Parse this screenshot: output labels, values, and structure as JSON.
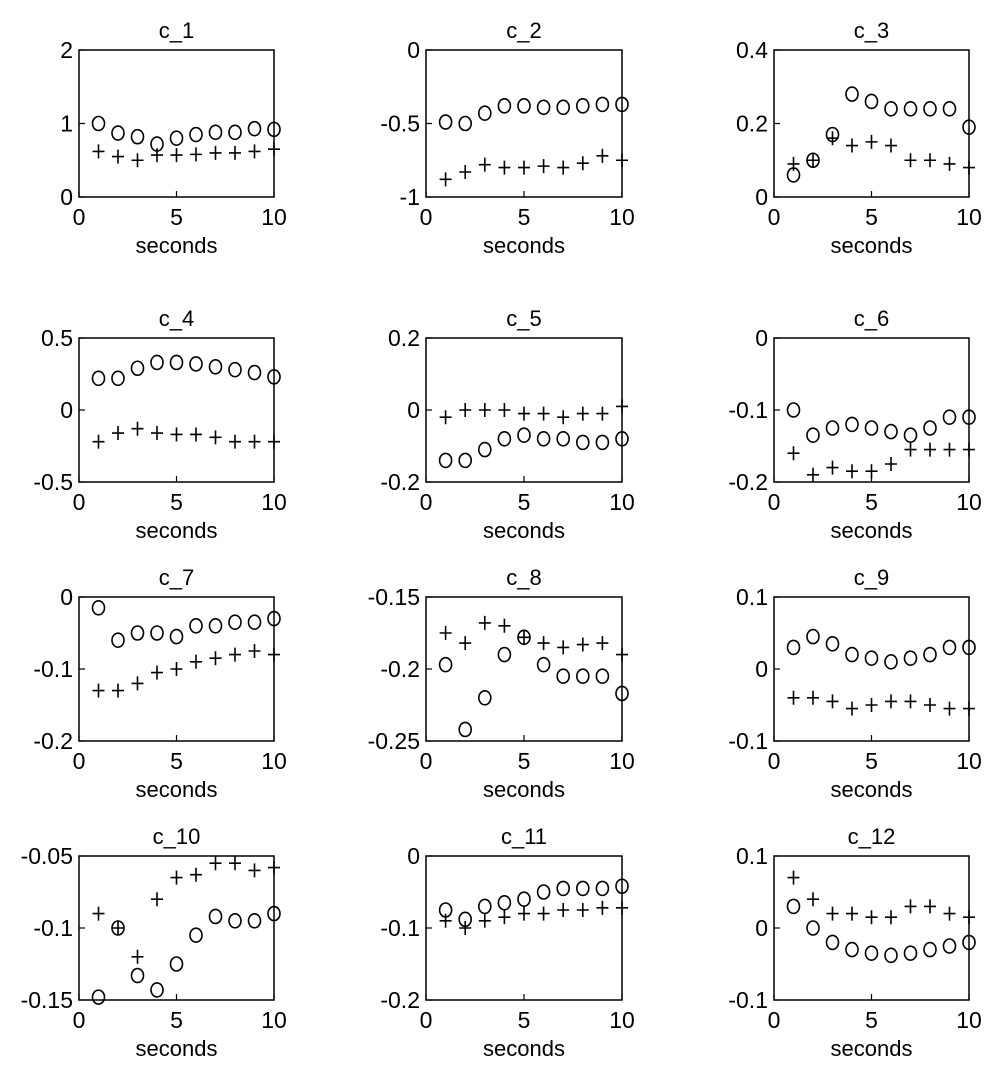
{
  "figure": {
    "background": "#ffffff",
    "marker_color": "#000000"
  },
  "chart_data": [
    {
      "type": "scatter",
      "title": "c_1",
      "xlabel": "seconds",
      "ylabel": "",
      "xlim": [
        0,
        10
      ],
      "ylim": [
        0,
        2
      ],
      "xticks": [
        "0",
        "5",
        "10"
      ],
      "yticks": [
        "0",
        "1",
        "2"
      ],
      "series": [
        {
          "marker": "o",
          "x": [
            1,
            2,
            3,
            4,
            5,
            6,
            7,
            8,
            9,
            10
          ],
          "values": [
            1.0,
            0.87,
            0.82,
            0.72,
            0.8,
            0.85,
            0.88,
            0.88,
            0.93,
            0.92
          ]
        },
        {
          "marker": "+",
          "x": [
            1,
            2,
            3,
            4,
            5,
            6,
            7,
            8,
            9,
            10
          ],
          "values": [
            0.62,
            0.55,
            0.5,
            0.57,
            0.57,
            0.58,
            0.6,
            0.6,
            0.62,
            0.65
          ]
        }
      ]
    },
    {
      "type": "scatter",
      "title": "c_2",
      "xlabel": "seconds",
      "ylabel": "",
      "xlim": [
        0,
        10
      ],
      "ylim": [
        -1,
        0
      ],
      "xticks": [
        "0",
        "5",
        "10"
      ],
      "yticks": [
        "-1",
        "-0.5",
        "0"
      ],
      "series": [
        {
          "marker": "o",
          "x": [
            1,
            2,
            3,
            4,
            5,
            6,
            7,
            8,
            9,
            10
          ],
          "values": [
            -0.49,
            -0.5,
            -0.43,
            -0.38,
            -0.38,
            -0.39,
            -0.39,
            -0.38,
            -0.37,
            -0.37
          ]
        },
        {
          "marker": "+",
          "x": [
            1,
            2,
            3,
            4,
            5,
            6,
            7,
            8,
            9,
            10
          ],
          "values": [
            -0.88,
            -0.83,
            -0.78,
            -0.8,
            -0.8,
            -0.79,
            -0.8,
            -0.77,
            -0.72,
            -0.75
          ]
        }
      ]
    },
    {
      "type": "scatter",
      "title": "c_3",
      "xlabel": "seconds",
      "ylabel": "",
      "xlim": [
        0,
        10
      ],
      "ylim": [
        0,
        0.4
      ],
      "xticks": [
        "0",
        "5",
        "10"
      ],
      "yticks": [
        "0",
        "0.2",
        "0.4"
      ],
      "series": [
        {
          "marker": "o",
          "x": [
            1,
            2,
            3,
            4,
            5,
            6,
            7,
            8,
            9,
            10
          ],
          "values": [
            0.06,
            0.1,
            0.17,
            0.28,
            0.26,
            0.24,
            0.24,
            0.24,
            0.24,
            0.19
          ]
        },
        {
          "marker": "+",
          "x": [
            1,
            2,
            3,
            4,
            5,
            6,
            7,
            8,
            9,
            10
          ],
          "values": [
            0.09,
            0.1,
            0.16,
            0.14,
            0.15,
            0.14,
            0.1,
            0.1,
            0.09,
            0.08
          ]
        }
      ]
    },
    {
      "type": "scatter",
      "title": "c_4",
      "xlabel": "seconds",
      "ylabel": "",
      "xlim": [
        0,
        10
      ],
      "ylim": [
        -0.5,
        0.5
      ],
      "xticks": [
        "0",
        "5",
        "10"
      ],
      "yticks": [
        "-0.5",
        "0",
        "0.5"
      ],
      "series": [
        {
          "marker": "o",
          "x": [
            1,
            2,
            3,
            4,
            5,
            6,
            7,
            8,
            9,
            10
          ],
          "values": [
            0.22,
            0.22,
            0.29,
            0.33,
            0.33,
            0.32,
            0.3,
            0.28,
            0.26,
            0.23
          ]
        },
        {
          "marker": "+",
          "x": [
            1,
            2,
            3,
            4,
            5,
            6,
            7,
            8,
            9,
            10
          ],
          "values": [
            -0.22,
            -0.16,
            -0.13,
            -0.16,
            -0.17,
            -0.17,
            -0.19,
            -0.22,
            -0.22,
            -0.22
          ]
        }
      ]
    },
    {
      "type": "scatter",
      "title": "c_5",
      "xlabel": "seconds",
      "ylabel": "",
      "xlim": [
        0,
        10
      ],
      "ylim": [
        -0.2,
        0.2
      ],
      "xticks": [
        "0",
        "5",
        "10"
      ],
      "yticks": [
        "-0.2",
        "0",
        "0.2"
      ],
      "series": [
        {
          "marker": "o",
          "x": [
            1,
            2,
            3,
            4,
            5,
            6,
            7,
            8,
            9,
            10
          ],
          "values": [
            -0.14,
            -0.14,
            -0.11,
            -0.08,
            -0.07,
            -0.08,
            -0.08,
            -0.09,
            -0.09,
            -0.08
          ]
        },
        {
          "marker": "+",
          "x": [
            1,
            2,
            3,
            4,
            5,
            6,
            7,
            8,
            9,
            10
          ],
          "values": [
            -0.02,
            0.0,
            0.0,
            0.0,
            -0.01,
            -0.01,
            -0.02,
            -0.01,
            -0.01,
            0.01
          ]
        }
      ]
    },
    {
      "type": "scatter",
      "title": "c_6",
      "xlabel": "seconds",
      "ylabel": "",
      "xlim": [
        0,
        10
      ],
      "ylim": [
        -0.2,
        0
      ],
      "xticks": [
        "0",
        "5",
        "10"
      ],
      "yticks": [
        "-0.2",
        "-0.1",
        "0"
      ],
      "series": [
        {
          "marker": "o",
          "x": [
            1,
            2,
            3,
            4,
            5,
            6,
            7,
            8,
            9,
            10
          ],
          "values": [
            -0.1,
            -0.135,
            -0.125,
            -0.12,
            -0.125,
            -0.13,
            -0.135,
            -0.125,
            -0.11,
            -0.11
          ]
        },
        {
          "marker": "+",
          "x": [
            1,
            2,
            3,
            4,
            5,
            6,
            7,
            8,
            9,
            10
          ],
          "values": [
            -0.16,
            -0.19,
            -0.18,
            -0.185,
            -0.185,
            -0.175,
            -0.155,
            -0.155,
            -0.155,
            -0.155
          ]
        }
      ]
    },
    {
      "type": "scatter",
      "title": "c_7",
      "xlabel": "seconds",
      "ylabel": "",
      "xlim": [
        0,
        10
      ],
      "ylim": [
        -0.2,
        0
      ],
      "xticks": [
        "0",
        "5",
        "10"
      ],
      "yticks": [
        "-0.2",
        "-0.1",
        "0"
      ],
      "series": [
        {
          "marker": "o",
          "x": [
            1,
            2,
            3,
            4,
            5,
            6,
            7,
            8,
            9,
            10
          ],
          "values": [
            -0.015,
            -0.06,
            -0.05,
            -0.05,
            -0.055,
            -0.04,
            -0.04,
            -0.035,
            -0.035,
            -0.03
          ]
        },
        {
          "marker": "+",
          "x": [
            1,
            2,
            3,
            4,
            5,
            6,
            7,
            8,
            9,
            10
          ],
          "values": [
            -0.13,
            -0.13,
            -0.12,
            -0.105,
            -0.1,
            -0.09,
            -0.085,
            -0.08,
            -0.075,
            -0.08
          ]
        }
      ]
    },
    {
      "type": "scatter",
      "title": "c_8",
      "xlabel": "seconds",
      "ylabel": "",
      "xlim": [
        0,
        10
      ],
      "ylim": [
        -0.25,
        -0.15
      ],
      "xticks": [
        "0",
        "5",
        "10"
      ],
      "yticks": [
        "-0.25",
        "-0.2",
        "-0.15"
      ],
      "series": [
        {
          "marker": "o",
          "x": [
            1,
            2,
            3,
            4,
            5,
            6,
            7,
            8,
            9,
            10
          ],
          "values": [
            -0.197,
            -0.242,
            -0.22,
            -0.19,
            -0.178,
            -0.197,
            -0.205,
            -0.205,
            -0.205,
            -0.217
          ]
        },
        {
          "marker": "+",
          "x": [
            1,
            2,
            3,
            4,
            5,
            6,
            7,
            8,
            9,
            10
          ],
          "values": [
            -0.175,
            -0.182,
            -0.168,
            -0.17,
            -0.178,
            -0.182,
            -0.185,
            -0.183,
            -0.182,
            -0.19
          ]
        }
      ]
    },
    {
      "type": "scatter",
      "title": "c_9",
      "xlabel": "seconds",
      "ylabel": "",
      "xlim": [
        0,
        10
      ],
      "ylim": [
        -0.1,
        0.1
      ],
      "xticks": [
        "0",
        "5",
        "10"
      ],
      "yticks": [
        "-0.1",
        "0",
        "0.1"
      ],
      "series": [
        {
          "marker": "o",
          "x": [
            1,
            2,
            3,
            4,
            5,
            6,
            7,
            8,
            9,
            10
          ],
          "values": [
            0.03,
            0.045,
            0.035,
            0.02,
            0.015,
            0.01,
            0.015,
            0.02,
            0.03,
            0.03
          ]
        },
        {
          "marker": "+",
          "x": [
            1,
            2,
            3,
            4,
            5,
            6,
            7,
            8,
            9,
            10
          ],
          "values": [
            -0.04,
            -0.04,
            -0.045,
            -0.055,
            -0.05,
            -0.045,
            -0.045,
            -0.05,
            -0.055,
            -0.055
          ]
        }
      ]
    },
    {
      "type": "scatter",
      "title": "c_10",
      "xlabel": "seconds",
      "ylabel": "",
      "xlim": [
        0,
        10
      ],
      "ylim": [
        -0.15,
        -0.05
      ],
      "xticks": [
        "0",
        "5",
        "10"
      ],
      "yticks": [
        "-0.15",
        "-0.1",
        "-0.05"
      ],
      "series": [
        {
          "marker": "o",
          "x": [
            1,
            2,
            3,
            4,
            5,
            6,
            7,
            8,
            9,
            10
          ],
          "values": [
            -0.148,
            -0.1,
            -0.133,
            -0.143,
            -0.125,
            -0.105,
            -0.092,
            -0.095,
            -0.095,
            -0.09
          ]
        },
        {
          "marker": "+",
          "x": [
            1,
            2,
            3,
            4,
            5,
            6,
            7,
            8,
            9,
            10
          ],
          "values": [
            -0.09,
            -0.1,
            -0.12,
            -0.08,
            -0.065,
            -0.063,
            -0.055,
            -0.055,
            -0.06,
            -0.058
          ]
        }
      ]
    },
    {
      "type": "scatter",
      "title": "c_11",
      "xlabel": "seconds",
      "ylabel": "",
      "xlim": [
        0,
        10
      ],
      "ylim": [
        -0.2,
        0
      ],
      "xticks": [
        "0",
        "5",
        "10"
      ],
      "yticks": [
        "-0.2",
        "-0.1",
        "0"
      ],
      "series": [
        {
          "marker": "o",
          "x": [
            1,
            2,
            3,
            4,
            5,
            6,
            7,
            8,
            9,
            10
          ],
          "values": [
            -0.075,
            -0.088,
            -0.07,
            -0.065,
            -0.06,
            -0.05,
            -0.045,
            -0.045,
            -0.045,
            -0.042
          ]
        },
        {
          "marker": "+",
          "x": [
            1,
            2,
            3,
            4,
            5,
            6,
            7,
            8,
            9,
            10
          ],
          "values": [
            -0.09,
            -0.1,
            -0.09,
            -0.085,
            -0.08,
            -0.08,
            -0.075,
            -0.075,
            -0.072,
            -0.072
          ]
        }
      ]
    },
    {
      "type": "scatter",
      "title": "c_12",
      "xlabel": "seconds",
      "ylabel": "",
      "xlim": [
        0,
        10
      ],
      "ylim": [
        -0.1,
        0.1
      ],
      "xticks": [
        "0",
        "5",
        "10"
      ],
      "yticks": [
        "-0.1",
        "0",
        "0.1"
      ],
      "series": [
        {
          "marker": "o",
          "x": [
            1,
            2,
            3,
            4,
            5,
            6,
            7,
            8,
            9,
            10
          ],
          "values": [
            0.03,
            0.0,
            -0.02,
            -0.03,
            -0.035,
            -0.038,
            -0.035,
            -0.03,
            -0.025,
            -0.02
          ]
        },
        {
          "marker": "+",
          "x": [
            1,
            2,
            3,
            4,
            5,
            6,
            7,
            8,
            9,
            10
          ],
          "values": [
            0.07,
            0.04,
            0.02,
            0.02,
            0.015,
            0.015,
            0.03,
            0.03,
            0.02,
            0.015
          ]
        }
      ]
    }
  ]
}
